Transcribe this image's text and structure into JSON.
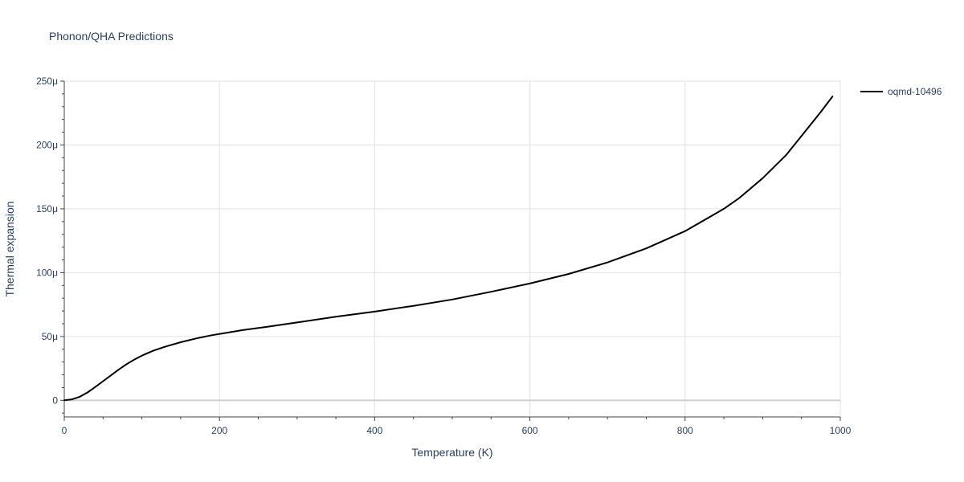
{
  "chart_data": {
    "type": "line",
    "title": "Phonon/QHA Predictions",
    "xlabel": "Temperature (K)",
    "ylabel": "Thermal expansion",
    "xlim": [
      0,
      1000
    ],
    "ylim": [
      -13,
      250
    ],
    "x_ticks": [
      0,
      200,
      400,
      600,
      800,
      1000
    ],
    "x_tick_labels": [
      "0",
      "200",
      "400",
      "600",
      "800",
      "1000"
    ],
    "y_ticks": [
      0,
      50,
      100,
      150,
      200,
      250
    ],
    "y_tick_labels": [
      "0",
      "50μ",
      "100μ",
      "150μ",
      "200μ",
      "250μ"
    ],
    "y_unit": "μ",
    "grid": true,
    "legend_position": "top-right",
    "series": [
      {
        "name": "oqmd-10496",
        "color": "#000000",
        "x": [
          0,
          10,
          20,
          30,
          40,
          50,
          60,
          70,
          80,
          90,
          100,
          115,
          130,
          150,
          170,
          190,
          210,
          230,
          260,
          300,
          350,
          400,
          450,
          500,
          550,
          600,
          650,
          700,
          750,
          800,
          850,
          870,
          900,
          930,
          950,
          975,
          990
        ],
        "y": [
          0,
          0.8,
          2.8,
          6.2,
          10.5,
          15,
          19.5,
          24,
          28.2,
          31.8,
          35,
          39,
          42,
          45.5,
          48.5,
          51,
          53,
          55,
          57.5,
          61,
          65.5,
          69.5,
          74,
          79,
          85,
          91.5,
          99,
          108,
          119,
          132.5,
          150,
          158.5,
          174,
          192,
          207,
          226,
          238
        ]
      }
    ]
  }
}
